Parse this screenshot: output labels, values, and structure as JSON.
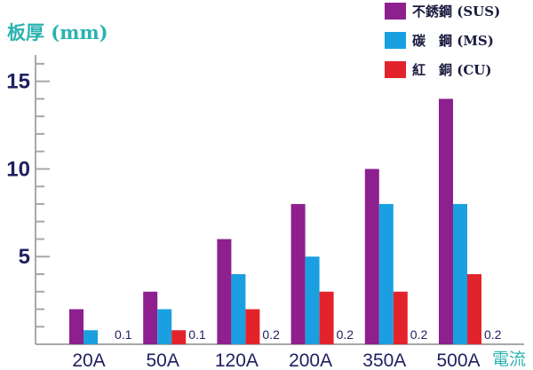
{
  "chart_data": {
    "type": "bar",
    "ylabel": "板厚 (mm)",
    "xlabel": "電流",
    "categories": [
      "20A",
      "50A",
      "120A",
      "200A",
      "350A",
      "500A"
    ],
    "series": [
      {
        "name": "不銹鋼 (SUS)",
        "color": "#8e1f8e",
        "values": [
          2,
          3,
          6,
          8,
          10,
          14
        ]
      },
      {
        "name": "碳　鋼 (MS)",
        "color": "#1a9fe0",
        "values": [
          0.8,
          2,
          4,
          5,
          8,
          8
        ]
      },
      {
        "name": "紅　銅 (CU)",
        "color": "#e3232b",
        "values": [
          null,
          0.8,
          2,
          3,
          3,
          4
        ]
      }
    ],
    "data_labels": [
      "0.1",
      "0.1",
      "0.2",
      "0.2",
      "0.2",
      "0.2"
    ],
    "yticks": [
      "5",
      "10",
      "15"
    ],
    "ylim": [
      0,
      16.5
    ],
    "grid": false,
    "legend": "top-right"
  }
}
